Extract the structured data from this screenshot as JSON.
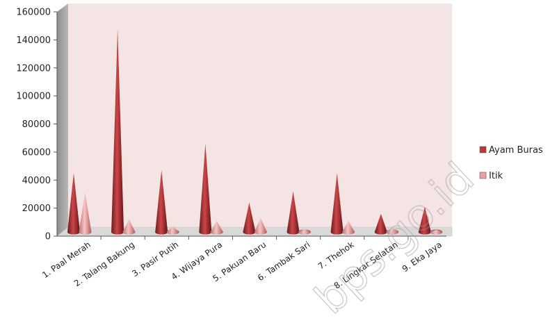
{
  "chart_data": {
    "type": "bar",
    "style": "3d-cone",
    "categories": [
      "1.   Paal Merah",
      "2.   Talang Bakung",
      "3.   Pasir Putih",
      "4.   Wijaya Pura",
      "5.   Pakuan Baru",
      "6.   Tambak Sari",
      "7.   Thehok",
      "8.   Lingkar Selatan",
      "9.   Eka Jaya"
    ],
    "series": [
      {
        "name": "Ayam Buras",
        "values": [
          42000,
          145000,
          44000,
          63000,
          21000,
          29000,
          42000,
          13000,
          18000
        ],
        "color": "#b9393b"
      },
      {
        "name": "Itik",
        "values": [
          28000,
          9000,
          4000,
          8000,
          10000,
          2000,
          8000,
          3000,
          1500
        ],
        "color": "#e9a0a0"
      }
    ],
    "ylim": [
      0,
      160000
    ],
    "yticks": [
      0,
      20000,
      40000,
      60000,
      80000,
      100000,
      120000,
      140000,
      160000
    ],
    "grid": false,
    "legend_position": "right",
    "plot_background": "#f5e4e4",
    "xlabel": "",
    "ylabel": ""
  },
  "watermark": "bps.go.id"
}
